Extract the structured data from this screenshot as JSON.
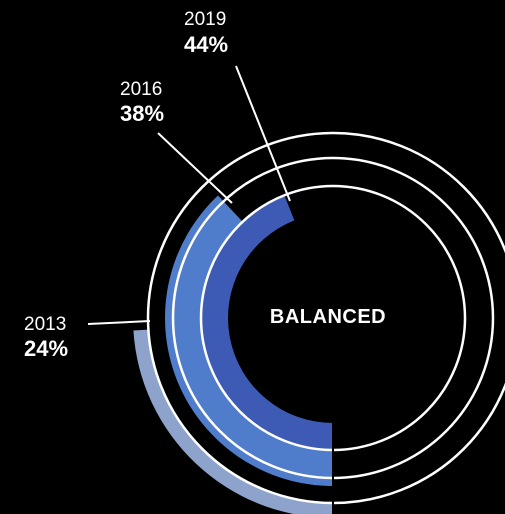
{
  "chart_data": {
    "type": "radial-bar",
    "center_label": "BALANCED",
    "series": [
      {
        "year": "2013",
        "value": 24,
        "value_label": "24%",
        "color": "#8ea3cc"
      },
      {
        "year": "2016",
        "value": 38,
        "value_label": "38%",
        "color": "#4f7dcb"
      },
      {
        "year": "2019",
        "value": 44,
        "value_label": "44%",
        "color": "#3d5bb5"
      }
    ],
    "value_max": 100,
    "ring_color": "#ffffff"
  }
}
